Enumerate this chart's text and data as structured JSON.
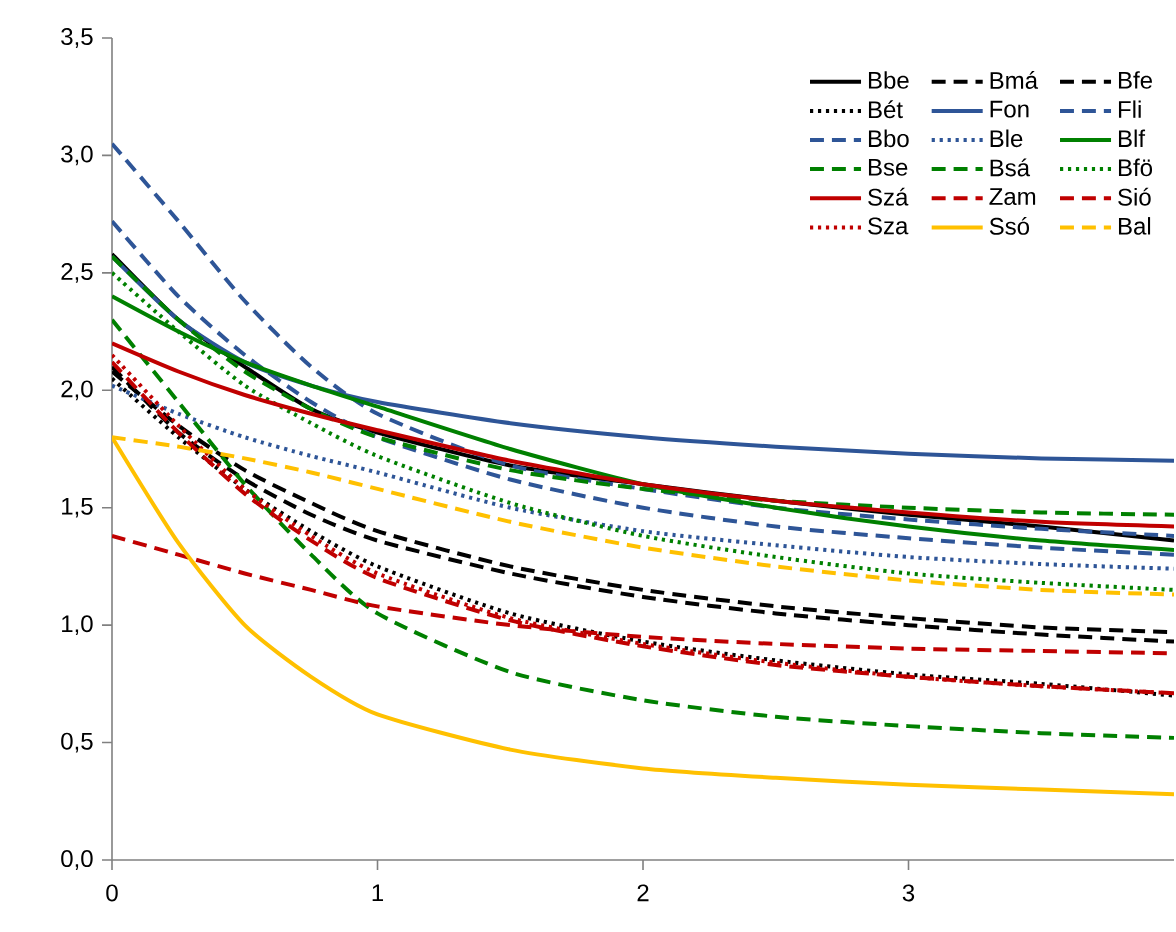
{
  "chart_data": {
    "type": "line",
    "x": [
      0,
      0.25,
      0.5,
      0.75,
      1,
      1.5,
      2,
      2.5,
      3,
      3.5,
      4
    ],
    "xlim": [
      0,
      4
    ],
    "xticks": [
      0,
      1,
      2,
      3
    ],
    "ylim": [
      0,
      3.5
    ],
    "yticks": [
      {
        "value": 0,
        "label": "0,0"
      },
      {
        "value": 0.5,
        "label": "0,5"
      },
      {
        "value": 1,
        "label": "1,0"
      },
      {
        "value": 1.5,
        "label": "1,5"
      },
      {
        "value": 2,
        "label": "2,0"
      },
      {
        "value": 2.5,
        "label": "2,5"
      },
      {
        "value": 3,
        "label": "3,0"
      },
      {
        "value": 3.5,
        "label": "3,5"
      }
    ],
    "grid": false,
    "legend": "top right",
    "marker": "none",
    "series": [
      {
        "name": "Bbe",
        "color": "#000000",
        "line_style": "solid",
        "values": [
          2.58,
          2.3,
          2.1,
          1.92,
          1.82,
          1.68,
          1.6,
          1.53,
          1.47,
          1.42,
          1.36
        ]
      },
      {
        "name": "Bmá",
        "color": "#000000",
        "line_style": "dashed",
        "values": [
          2.1,
          1.82,
          1.62,
          1.47,
          1.36,
          1.22,
          1.12,
          1.05,
          1.0,
          0.96,
          0.93
        ]
      },
      {
        "name": "Bfe",
        "color": "#000000",
        "line_style": "dashed",
        "values": [
          2.08,
          1.85,
          1.66,
          1.52,
          1.4,
          1.25,
          1.15,
          1.08,
          1.03,
          0.99,
          0.97
        ]
      },
      {
        "name": "Bét",
        "color": "#000000",
        "line_style": "dotted",
        "values": [
          2.05,
          1.8,
          1.58,
          1.4,
          1.25,
          1.05,
          0.93,
          0.85,
          0.79,
          0.75,
          0.7
        ]
      },
      {
        "name": "Fon",
        "color": "#2e5597",
        "line_style": "solid",
        "values": [
          2.57,
          2.3,
          2.12,
          2.02,
          1.95,
          1.86,
          1.8,
          1.76,
          1.73,
          1.71,
          1.7
        ]
      },
      {
        "name": "Fli",
        "color": "#2e5597",
        "line_style": "dashed",
        "values": [
          3.05,
          2.72,
          2.38,
          2.1,
          1.9,
          1.68,
          1.58,
          1.5,
          1.45,
          1.41,
          1.38
        ]
      },
      {
        "name": "Bbo",
        "color": "#2e5597",
        "line_style": "dashed",
        "values": [
          2.72,
          2.4,
          2.15,
          1.95,
          1.8,
          1.62,
          1.5,
          1.42,
          1.37,
          1.33,
          1.3
        ]
      },
      {
        "name": "Ble",
        "color": "#2e5597",
        "line_style": "dotted",
        "values": [
          2.02,
          1.9,
          1.8,
          1.72,
          1.65,
          1.5,
          1.4,
          1.34,
          1.29,
          1.26,
          1.24
        ]
      },
      {
        "name": "Blf",
        "color": "#008000",
        "line_style": "solid",
        "values": [
          2.4,
          2.25,
          2.12,
          2.02,
          1.93,
          1.75,
          1.6,
          1.5,
          1.42,
          1.36,
          1.32
        ]
      },
      {
        "name": "Bse",
        "color": "#008000",
        "line_style": "dashed",
        "values": [
          2.3,
          1.95,
          1.6,
          1.3,
          1.05,
          0.8,
          0.68,
          0.61,
          0.57,
          0.54,
          0.52
        ]
      },
      {
        "name": "Bsá",
        "color": "#008000",
        "line_style": "dashed",
        "values": [
          2.57,
          2.3,
          2.08,
          1.92,
          1.8,
          1.66,
          1.58,
          1.53,
          1.5,
          1.48,
          1.47
        ]
      },
      {
        "name": "Bfö",
        "color": "#008000",
        "line_style": "dotted",
        "values": [
          2.5,
          2.25,
          2.02,
          1.86,
          1.72,
          1.52,
          1.38,
          1.29,
          1.22,
          1.18,
          1.15
        ]
      },
      {
        "name": "Szá",
        "color": "#c00000",
        "line_style": "solid",
        "values": [
          2.2,
          2.08,
          1.98,
          1.9,
          1.83,
          1.7,
          1.6,
          1.53,
          1.48,
          1.44,
          1.42
        ]
      },
      {
        "name": "Zam",
        "color": "#c00000",
        "line_style": "dashed",
        "values": [
          1.38,
          1.3,
          1.22,
          1.15,
          1.08,
          1.0,
          0.95,
          0.92,
          0.9,
          0.89,
          0.88
        ]
      },
      {
        "name": "Sió",
        "color": "#c00000",
        "line_style": "dashed",
        "values": [
          2.12,
          1.82,
          1.56,
          1.36,
          1.2,
          1.02,
          0.91,
          0.83,
          0.78,
          0.74,
          0.71
        ]
      },
      {
        "name": "Sza",
        "color": "#c00000",
        "line_style": "dotted",
        "values": [
          2.15,
          1.85,
          1.58,
          1.38,
          1.22,
          1.03,
          0.92,
          0.84,
          0.78,
          0.74,
          0.71
        ]
      },
      {
        "name": "Ssó",
        "color": "#ffc000",
        "line_style": "solid",
        "values": [
          1.8,
          1.35,
          1.0,
          0.78,
          0.62,
          0.47,
          0.39,
          0.35,
          0.32,
          0.3,
          0.28
        ]
      },
      {
        "name": "Bal",
        "color": "#ffc000",
        "line_style": "dashed",
        "values": [
          1.8,
          1.76,
          1.71,
          1.65,
          1.58,
          1.44,
          1.33,
          1.25,
          1.19,
          1.15,
          1.13
        ]
      }
    ]
  }
}
